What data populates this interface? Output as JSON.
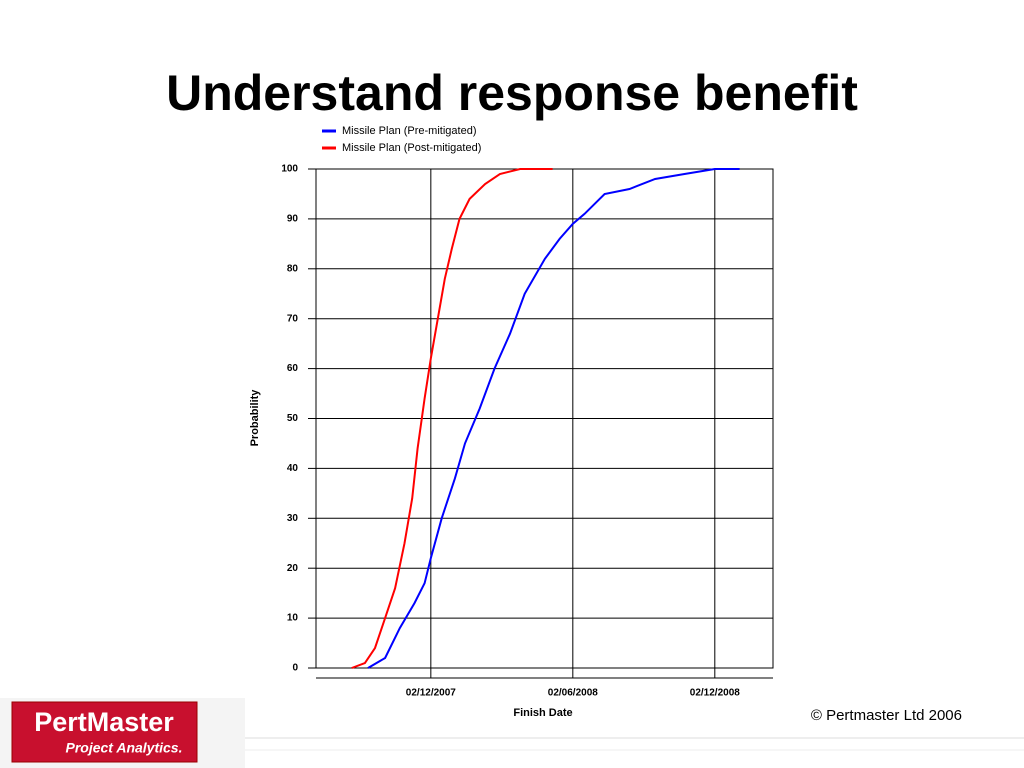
{
  "chart_data": {
    "type": "line",
    "title": "Understand response benefit",
    "x_label": "Finish Date",
    "y_label": "Probability",
    "series": [
      {
        "name": "Missile Plan (Pre-mitigated)",
        "color": "#0000ff",
        "x": [
          "2007-09-12",
          "2007-10-04",
          "2007-10-23",
          "2007-11-11",
          "2007-11-24",
          "2007-12-02",
          "2007-12-16",
          "2008-01-02",
          "2008-01-15",
          "2008-02-03",
          "2008-02-22",
          "2008-03-13",
          "2008-04-01",
          "2008-04-27",
          "2008-05-16",
          "2008-06-02",
          "2008-06-17",
          "2008-07-13",
          "2008-08-14",
          "2008-09-16",
          "2008-10-24",
          "2008-12-02",
          "2009-01-03"
        ],
        "values": [
          0,
          2,
          8,
          13,
          17,
          22,
          30,
          38,
          45,
          52,
          60,
          67,
          75,
          82,
          86,
          89,
          91,
          95,
          96,
          98,
          99,
          100,
          100
        ]
      },
      {
        "name": "Missile Plan (Post-mitigated)",
        "color": "#ff0000",
        "x": [
          "2007-08-22",
          "2007-09-08",
          "2007-09-21",
          "2007-10-04",
          "2007-10-17",
          "2007-10-29",
          "2007-11-08",
          "2007-11-15",
          "2007-11-24",
          "2007-12-02",
          "2007-12-11",
          "2007-12-20",
          "2007-12-29",
          "2008-01-08",
          "2008-01-21",
          "2008-02-10",
          "2008-02-29",
          "2008-03-26",
          "2008-05-07"
        ],
        "values": [
          0,
          1,
          4,
          10,
          16,
          25,
          34,
          44,
          54,
          62,
          70,
          78,
          84,
          90,
          94,
          97,
          99,
          100,
          100
        ]
      }
    ],
    "xlim": [
      "2007-07-07",
      "2009-02-15"
    ],
    "xticks": [
      {
        "value": "2007-12-02",
        "label": "02/12/2007"
      },
      {
        "value": "2008-06-02",
        "label": "02/06/2008"
      },
      {
        "value": "2008-12-02",
        "label": "02/12/2008"
      }
    ],
    "ylim": [
      0,
      100
    ],
    "yticks": [
      0,
      10,
      20,
      30,
      40,
      50,
      60,
      70,
      80,
      90,
      100
    ],
    "grid": true,
    "legend": "top-left"
  },
  "logo": {
    "name": "PertMaster",
    "tagline": "Project Analytics."
  },
  "footer": "© Pertmaster Ltd 2006"
}
